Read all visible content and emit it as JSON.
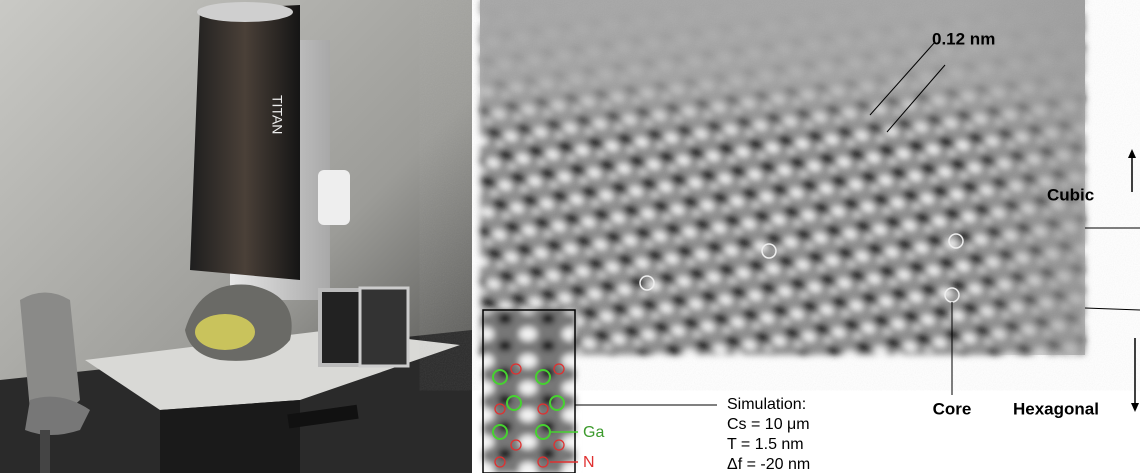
{
  "photo": {
    "label": "TITAN"
  },
  "hrtem": {
    "spacing_label": "0.12 nm",
    "cubic_label": "Cubic",
    "core_label": "Core",
    "hexagonal_label": "Hexagonal"
  },
  "simulation": {
    "title": "Simulation:",
    "cs": "Cs = 10 μm",
    "thickness": "T = 1.5 nm",
    "defocus": "Δf = -20 nm",
    "ga_label": "Ga",
    "n_label": "N"
  }
}
